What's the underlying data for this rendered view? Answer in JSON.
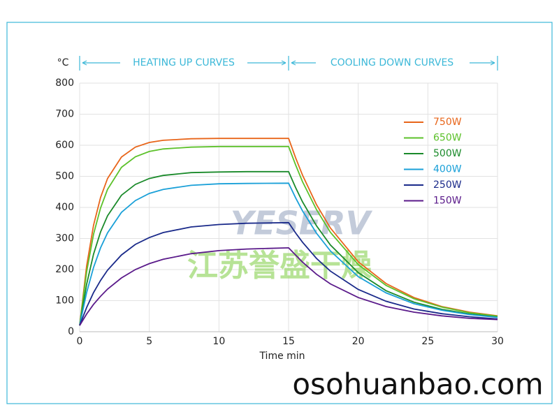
{
  "chart_data": {
    "type": "line",
    "y_unit": "°C",
    "heating_label": "HEATING UP CURVES",
    "cooling_label": "COOLING DOWN CURVES",
    "x_label": "Time min",
    "watermark": [
      "YESERV",
      "江苏誉盛干燥"
    ],
    "site": "osohuanbao.com",
    "x": [
      0,
      0.5,
      1,
      1.5,
      2,
      3,
      4,
      5,
      6,
      8,
      10,
      12,
      15,
      15.5,
      16,
      17,
      18,
      20,
      22,
      24,
      26,
      28,
      30
    ],
    "series": [
      {
        "name": "750W",
        "color": "#e8651a",
        "values": [
          20,
          212,
          343,
          432,
          493,
          562,
          594,
          609,
          616,
          621,
          622,
          622,
          622,
          560,
          504,
          409,
          334,
          225,
          155,
          110,
          81,
          63,
          51
        ]
      },
      {
        "name": "650W",
        "color": "#5cc12a",
        "values": [
          20,
          193,
          314,
          398,
          458,
          529,
          563,
          580,
          588,
          594,
          596,
          596,
          596,
          537,
          483,
          393,
          320,
          216,
          149,
          106,
          79,
          61,
          50
        ]
      },
      {
        "name": "500W",
        "color": "#1a8a2a",
        "values": [
          20,
          153,
          250,
          321,
          373,
          439,
          474,
          493,
          503,
          512,
          514,
          515,
          515,
          464,
          418,
          341,
          279,
          190,
          132,
          95,
          72,
          57,
          47
        ]
      },
      {
        "name": "400W",
        "color": "#1aa0d8",
        "values": [
          20,
          126,
          207,
          270,
          318,
          384,
          422,
          445,
          458,
          471,
          476,
          477,
          478,
          431,
          389,
          317,
          260,
          177,
          125,
          90,
          69,
          55,
          46
        ]
      },
      {
        "name": "250W",
        "color": "#1a2a8a",
        "values": [
          20,
          78,
          126,
          165,
          198,
          247,
          281,
          303,
          319,
          337,
          345,
          349,
          351,
          318,
          288,
          236,
          195,
          136,
          98,
          73,
          58,
          48,
          41
        ]
      },
      {
        "name": "150W",
        "color": "#5a1a8a",
        "values": [
          20,
          57,
          88,
          114,
          137,
          173,
          200,
          219,
          233,
          251,
          261,
          266,
          270,
          247,
          224,
          185,
          154,
          110,
          81,
          63,
          51,
          43,
          39
        ]
      }
    ],
    "xlim": [
      0,
      30
    ],
    "xticks": [
      0,
      5,
      10,
      15,
      20,
      25,
      30
    ],
    "ylim": [
      0,
      800
    ],
    "yticks": [
      0,
      100,
      200,
      300,
      400,
      500,
      600,
      700,
      800
    ],
    "grid": true
  }
}
